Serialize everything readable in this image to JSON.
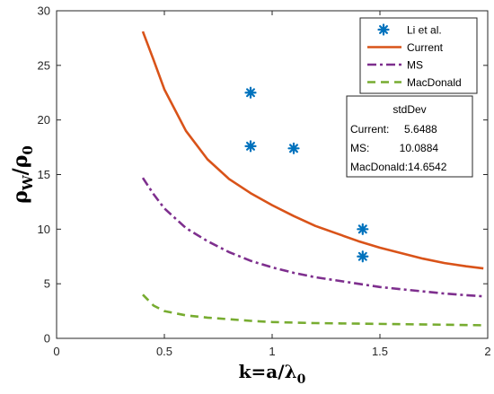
{
  "chart_data": {
    "type": "line",
    "xlim": [
      0,
      2
    ],
    "ylim": [
      0,
      30
    ],
    "xticks": [
      "0",
      "0.5",
      "1",
      "1.5",
      "2"
    ],
    "yticks": [
      "0",
      "5",
      "10",
      "15",
      "20",
      "25",
      "30"
    ],
    "ylabel": "ρW/ρ0",
    "xlabel": "k=a/λ0",
    "legend_position": "top-right",
    "series": [
      {
        "name": "Li et al.",
        "kind": "scatter",
        "color": "#0072BD",
        "points": [
          [
            0.9,
            22.5
          ],
          [
            0.9,
            17.6
          ],
          [
            1.1,
            17.4
          ],
          [
            1.42,
            10.0
          ],
          [
            1.42,
            7.5
          ]
        ]
      },
      {
        "name": "Current",
        "kind": "line",
        "dash": "solid",
        "color": "#D95319",
        "points": [
          [
            0.4,
            28.1
          ],
          [
            0.45,
            25.5
          ],
          [
            0.5,
            22.8
          ],
          [
            0.6,
            19.0
          ],
          [
            0.7,
            16.4
          ],
          [
            0.8,
            14.6
          ],
          [
            0.9,
            13.3
          ],
          [
            1.0,
            12.2
          ],
          [
            1.1,
            11.2
          ],
          [
            1.2,
            10.3
          ],
          [
            1.3,
            9.6
          ],
          [
            1.4,
            8.9
          ],
          [
            1.5,
            8.3
          ],
          [
            1.6,
            7.8
          ],
          [
            1.7,
            7.3
          ],
          [
            1.8,
            6.9
          ],
          [
            1.9,
            6.6
          ],
          [
            1.98,
            6.4
          ]
        ]
      },
      {
        "name": "MS",
        "kind": "line",
        "dash": "dashdot",
        "color": "#7E2F8E",
        "points": [
          [
            0.4,
            14.7
          ],
          [
            0.45,
            13.2
          ],
          [
            0.5,
            11.9
          ],
          [
            0.6,
            10.1
          ],
          [
            0.7,
            8.9
          ],
          [
            0.8,
            7.9
          ],
          [
            0.9,
            7.1
          ],
          [
            1.0,
            6.5
          ],
          [
            1.1,
            6.0
          ],
          [
            1.2,
            5.6
          ],
          [
            1.3,
            5.3
          ],
          [
            1.4,
            5.0
          ],
          [
            1.5,
            4.7
          ],
          [
            1.6,
            4.5
          ],
          [
            1.7,
            4.3
          ],
          [
            1.8,
            4.1
          ],
          [
            1.9,
            3.95
          ],
          [
            1.98,
            3.85
          ]
        ]
      },
      {
        "name": "MacDonald",
        "kind": "line",
        "dash": "dashed",
        "color": "#77AC30",
        "points": [
          [
            0.4,
            4.0
          ],
          [
            0.45,
            3.0
          ],
          [
            0.5,
            2.5
          ],
          [
            0.6,
            2.1
          ],
          [
            0.7,
            1.9
          ],
          [
            0.8,
            1.75
          ],
          [
            0.9,
            1.6
          ],
          [
            1.0,
            1.5
          ],
          [
            1.2,
            1.4
          ],
          [
            1.4,
            1.35
          ],
          [
            1.6,
            1.3
          ],
          [
            1.8,
            1.25
          ],
          [
            1.98,
            1.2
          ]
        ]
      }
    ],
    "stats_box": {
      "title": "stdDev",
      "rows": [
        "Current:     5.6488",
        "MS:          10.0884",
        "MacDonald:14.6542"
      ]
    }
  }
}
